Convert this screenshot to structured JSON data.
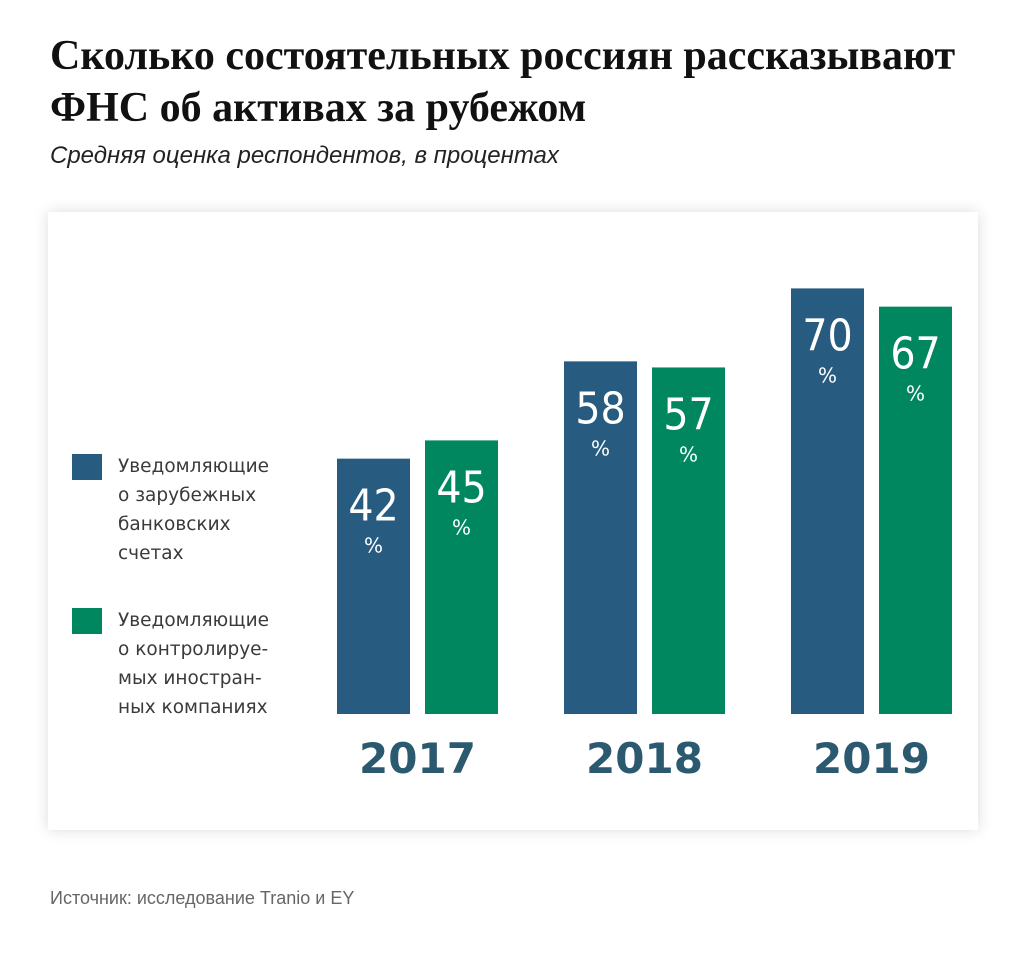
{
  "title": "Сколько состоятельных россиян рассказывают ФНС об активах за рубежом",
  "subtitle": "Средняя оценка респондентов,  в процентах",
  "source": "Источник:  исследование Tranio и EY",
  "colors": {
    "series_banks": "#275b80",
    "series_companies": "#008760",
    "year_labels": "#2b5a70"
  },
  "legend": [
    {
      "label": "Уведомляющие\nо зарубежных\nбанковских\nсчетах",
      "color": "#275b80"
    },
    {
      "label": "Уведомляющие\nо контролируе-\nмых иностран-\nных компаниях",
      "color": "#008760"
    }
  ],
  "chart_data": {
    "type": "bar",
    "categories": [
      "2017",
      "2018",
      "2019"
    ],
    "series": [
      {
        "name": "Уведомляющие о зарубежных банковских счетах",
        "values": [
          42,
          58,
          70
        ]
      },
      {
        "name": "Уведомляющие о контролируемых иностранных компаниях",
        "values": [
          45,
          57,
          67
        ]
      }
    ],
    "value_suffix": "%",
    "title": "Сколько состоятельных россиян рассказывают ФНС об активах за рубежом",
    "subtitle": "Средняя оценка респондентов,  в процентах",
    "grid": false,
    "legend_position": "left"
  }
}
